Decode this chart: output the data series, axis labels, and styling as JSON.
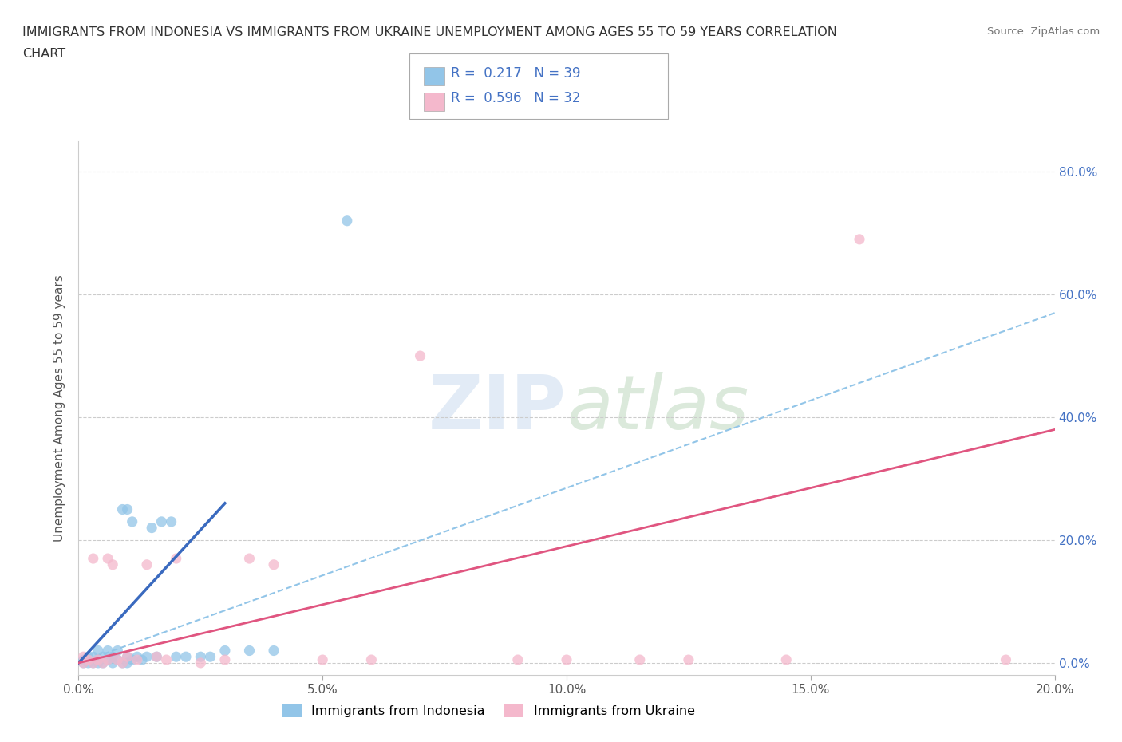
{
  "title_line1": "IMMIGRANTS FROM INDONESIA VS IMMIGRANTS FROM UKRAINE UNEMPLOYMENT AMONG AGES 55 TO 59 YEARS CORRELATION",
  "title_line2": "CHART",
  "source": "Source: ZipAtlas.com",
  "ylabel": "Unemployment Among Ages 55 to 59 years",
  "xlim": [
    0.0,
    0.2
  ],
  "ylim": [
    -0.02,
    0.85
  ],
  "yticks": [
    0.0,
    0.2,
    0.4,
    0.6,
    0.8
  ],
  "ytick_labels": [
    "0.0%",
    "20.0%",
    "40.0%",
    "60.0%",
    "80.0%"
  ],
  "xticks": [
    0.0,
    0.05,
    0.1,
    0.15,
    0.2
  ],
  "xtick_labels": [
    "0.0%",
    "5.0%",
    "10.0%",
    "15.0%",
    "20.0%"
  ],
  "indonesia_color": "#92c5e8",
  "ukraine_color": "#f4b8cc",
  "indonesia_line_color": "#3a6abf",
  "ukraine_line_color": "#e05580",
  "dashed_line_color": "#92c5e8",
  "R_indonesia": 0.217,
  "N_indonesia": 39,
  "R_ukraine": 0.596,
  "N_ukraine": 32,
  "watermark_ZIP": "ZIP",
  "watermark_atlas": "atlas",
  "indonesia_scatter_x": [
    0.001,
    0.001,
    0.002,
    0.002,
    0.003,
    0.003,
    0.004,
    0.004,
    0.004,
    0.005,
    0.005,
    0.006,
    0.006,
    0.007,
    0.007,
    0.008,
    0.008,
    0.009,
    0.009,
    0.01,
    0.01,
    0.01,
    0.011,
    0.011,
    0.012,
    0.013,
    0.014,
    0.015,
    0.016,
    0.017,
    0.019,
    0.02,
    0.022,
    0.025,
    0.027,
    0.03,
    0.035,
    0.04,
    0.055
  ],
  "indonesia_scatter_y": [
    0.0,
    0.005,
    0.0,
    0.01,
    0.0,
    0.01,
    0.0,
    0.005,
    0.02,
    0.0,
    0.01,
    0.005,
    0.02,
    0.0,
    0.01,
    0.005,
    0.02,
    0.0,
    0.25,
    0.0,
    0.01,
    0.25,
    0.005,
    0.23,
    0.01,
    0.005,
    0.01,
    0.22,
    0.01,
    0.23,
    0.23,
    0.01,
    0.01,
    0.01,
    0.01,
    0.02,
    0.02,
    0.02,
    0.72
  ],
  "ukraine_scatter_x": [
    0.001,
    0.001,
    0.002,
    0.003,
    0.003,
    0.004,
    0.005,
    0.006,
    0.006,
    0.007,
    0.008,
    0.009,
    0.01,
    0.012,
    0.014,
    0.016,
    0.018,
    0.02,
    0.025,
    0.03,
    0.035,
    0.04,
    0.05,
    0.06,
    0.07,
    0.09,
    0.1,
    0.115,
    0.125,
    0.145,
    0.16,
    0.19
  ],
  "ukraine_scatter_y": [
    0.0,
    0.01,
    0.005,
    0.0,
    0.17,
    0.005,
    0.0,
    0.17,
    0.005,
    0.16,
    0.005,
    0.0,
    0.01,
    0.005,
    0.16,
    0.01,
    0.005,
    0.17,
    0.0,
    0.005,
    0.17,
    0.16,
    0.005,
    0.005,
    0.5,
    0.005,
    0.005,
    0.005,
    0.005,
    0.005,
    0.69,
    0.005
  ],
  "indonesia_line_x": [
    0.0,
    0.03
  ],
  "indonesia_line_y": [
    0.0,
    0.26
  ],
  "ukraine_line_x": [
    0.0,
    0.2
  ],
  "ukraine_line_y": [
    0.0,
    0.38
  ],
  "dashed_line_x": [
    0.0,
    0.2
  ],
  "dashed_line_y": [
    0.0,
    0.57
  ]
}
